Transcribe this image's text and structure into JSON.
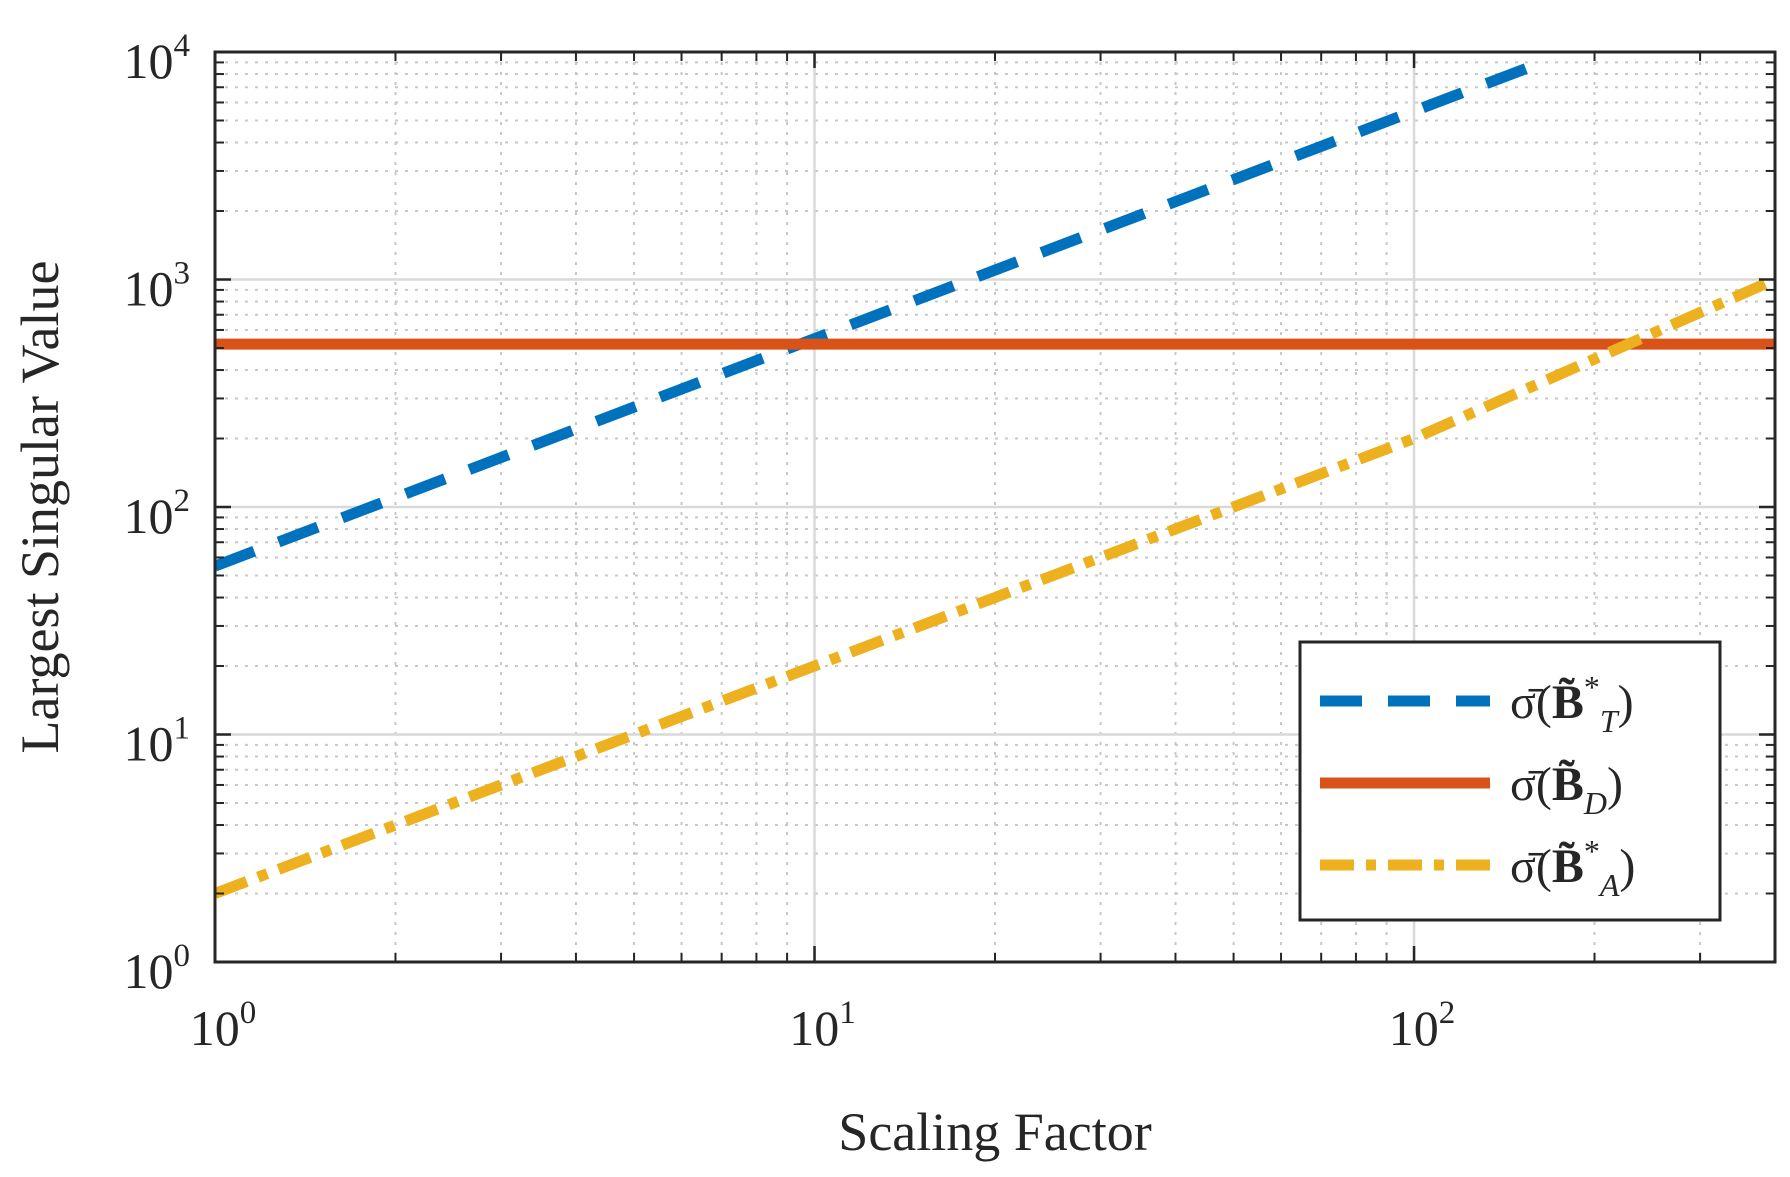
{
  "chart_data": {
    "type": "line",
    "xscale": "log",
    "yscale": "log",
    "xlim": [
      1,
      400
    ],
    "ylim": [
      1,
      10000
    ],
    "xlabel": "Scaling Factor",
    "ylabel": "Largest Singular Value",
    "grid": true,
    "minor_grid": true,
    "x_ticks": [
      {
        "base": "10",
        "exp": "0",
        "value": 1
      },
      {
        "base": "10",
        "exp": "1",
        "value": 10
      },
      {
        "base": "10",
        "exp": "2",
        "value": 100
      }
    ],
    "y_ticks": [
      {
        "base": "10",
        "exp": "0",
        "value": 1
      },
      {
        "base": "10",
        "exp": "1",
        "value": 10
      },
      {
        "base": "10",
        "exp": "2",
        "value": 100
      },
      {
        "base": "10",
        "exp": "3",
        "value": 1000
      },
      {
        "base": "10",
        "exp": "4",
        "value": 10000
      }
    ],
    "legend_position": "bottom-right",
    "series": [
      {
        "name": "σ̄(B̃*_T)",
        "legend": {
          "sigma": "σ̄",
          "open": "(",
          "symbol": "B̃",
          "sup": "*",
          "sub": "T",
          "close": ")"
        },
        "color": "#0072BD",
        "style": "dashed",
        "x": [
          1,
          10,
          100,
          160
        ],
        "y": [
          55,
          550,
          5500,
          8800
        ]
      },
      {
        "name": "σ̄(B̃_D)",
        "legend": {
          "sigma": "σ̄",
          "open": "(",
          "symbol": "B̃",
          "sup": "",
          "sub": "D",
          "close": ")"
        },
        "color": "#D95319",
        "style": "solid",
        "x": [
          1,
          400
        ],
        "y": [
          520,
          520
        ]
      },
      {
        "name": "σ̄(B̃*_A)",
        "legend": {
          "sigma": "σ̄",
          "open": "(",
          "symbol": "B̃",
          "sup": "*",
          "sub": "A",
          "close": ")"
        },
        "color": "#EDB120",
        "style": "dashdot",
        "x": [
          1,
          10,
          100,
          400
        ],
        "y": [
          2,
          20,
          200,
          1000
        ]
      }
    ]
  }
}
